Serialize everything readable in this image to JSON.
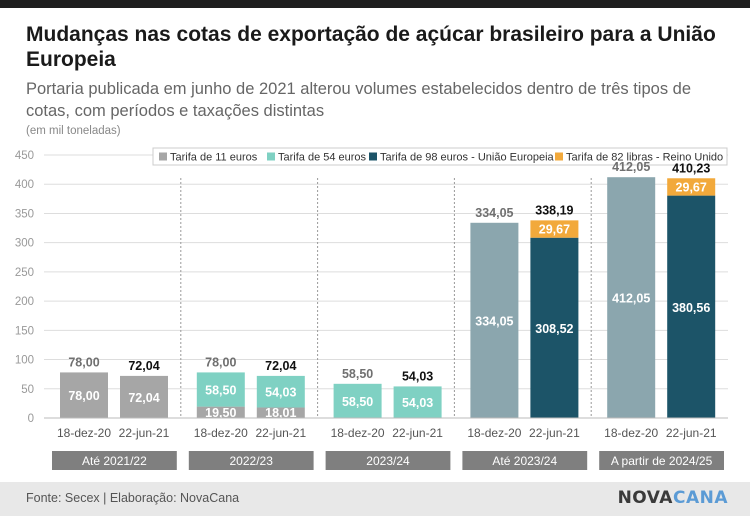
{
  "title": "Mudanças nas cotas de exportação de açúcar brasileiro para a União Europeia",
  "subtitle": "Portaria publicada em junho de 2021 alterou volumes estabelecidos dentro de três tipos de cotas, com períodos e taxações distintas",
  "unit_note": "(em mil toneladas)",
  "source": "Fonte: Secex | Elaboração: NovaCana",
  "logo": {
    "part1": "NOVA",
    "part2": "CANA"
  },
  "colors": {
    "t11": "#a6a6a6",
    "t54": "#7fd1c3",
    "t98": "#1c5468",
    "t82": "#f2a93b",
    "total_bar": "#8ba6ae",
    "group_band": "#7f7f7f",
    "grid": "#dddddd"
  },
  "chart_data": {
    "type": "bar",
    "stacked": true,
    "ylim": [
      0,
      450
    ],
    "yticks": [
      "0",
      "50",
      "100",
      "150",
      "200",
      "250",
      "300",
      "350",
      "400",
      "450"
    ],
    "grid": true,
    "legend_position": "top-right",
    "legend": [
      {
        "key": "t11",
        "label": "Tarifa de 11 euros"
      },
      {
        "key": "t54",
        "label": "Tarifa de 54 euros"
      },
      {
        "key": "t98",
        "label": "Tarifa de 98 euros - União Europeia"
      },
      {
        "key": "t82",
        "label": "Tarifa de 82 libras - Reino Unido"
      }
    ],
    "groups": [
      {
        "label": "Até 2021/22",
        "bars": [
          {
            "date": "18-dez-20",
            "total": "78,00",
            "segments": [
              {
                "key": "t11",
                "value": 78.0,
                "label": "78,00"
              }
            ]
          },
          {
            "date": "22-jun-21",
            "total": "72,04",
            "segments": [
              {
                "key": "t11",
                "value": 72.04,
                "label": "72,04"
              }
            ]
          }
        ]
      },
      {
        "label": "2022/23",
        "bars": [
          {
            "date": "18-dez-20",
            "total": "78,00",
            "segments": [
              {
                "key": "t11",
                "value": 19.5,
                "label": "19,50"
              },
              {
                "key": "t54",
                "value": 58.5,
                "label": "58,50"
              }
            ]
          },
          {
            "date": "22-jun-21",
            "total": "72,04",
            "segments": [
              {
                "key": "t11",
                "value": 18.01,
                "label": "18,01"
              },
              {
                "key": "t54",
                "value": 54.03,
                "label": "54,03"
              }
            ]
          }
        ]
      },
      {
        "label": "2023/24",
        "bars": [
          {
            "date": "18-dez-20",
            "total": "58,50",
            "segments": [
              {
                "key": "t54",
                "value": 58.5,
                "label": "58,50"
              }
            ]
          },
          {
            "date": "22-jun-21",
            "total": "54,03",
            "segments": [
              {
                "key": "t54",
                "value": 54.03,
                "label": "54,03"
              }
            ]
          }
        ]
      },
      {
        "label": "Até 2023/24",
        "bars": [
          {
            "date": "18-dez-20",
            "total": "334,05",
            "segments": [
              {
                "key": "total_bar",
                "value": 334.05,
                "label": "334,05"
              }
            ]
          },
          {
            "date": "22-jun-21",
            "total": "338,19",
            "segments": [
              {
                "key": "t98",
                "value": 308.52,
                "label": "308,52"
              },
              {
                "key": "t82",
                "value": 29.67,
                "label": "29,67"
              }
            ]
          }
        ]
      },
      {
        "label": "A partir de 2024/25",
        "bars": [
          {
            "date": "18-dez-20",
            "total": "412,05",
            "segments": [
              {
                "key": "total_bar",
                "value": 412.05,
                "label": "412,05"
              }
            ]
          },
          {
            "date": "22-jun-21",
            "total": "410,23",
            "segments": [
              {
                "key": "t98",
                "value": 380.56,
                "label": "380,56"
              },
              {
                "key": "t82",
                "value": 29.67,
                "label": "29,67"
              }
            ]
          }
        ]
      }
    ]
  }
}
